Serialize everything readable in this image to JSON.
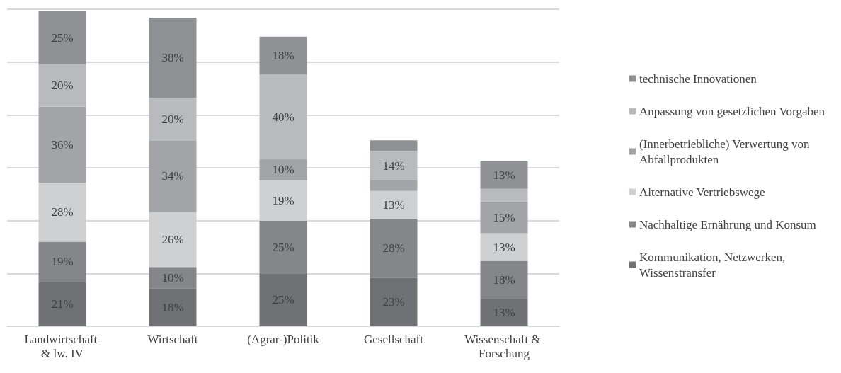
{
  "chart_data": {
    "type": "bar",
    "stacked": true,
    "grid": "y",
    "legend": "right",
    "tick_labels": "x",
    "ylim": [
      0,
      150
    ],
    "yticks": [
      0,
      25,
      50,
      75,
      100,
      125,
      150
    ],
    "categories": [
      "Landwirtschaft & lw. IV",
      "Wirtschaft",
      "(Agrar-)Politik",
      "Gesellschaft",
      "Wissenschaft & Forschung"
    ],
    "series": [
      {
        "name": "Kommunikation, Netzwerken, Wissenstransfer",
        "color": "#707175",
        "values": [
          21,
          18,
          25,
          23,
          13
        ],
        "value_labels": [
          "21%",
          "18%",
          "25%",
          "23%",
          "13%"
        ]
      },
      {
        "name": "Nachhaltige Ernährung und Konsum",
        "color": "#85868a",
        "values": [
          19,
          10,
          25,
          28,
          18
        ],
        "value_labels": [
          "19%",
          "10%",
          "25%",
          "28%",
          "18%"
        ]
      },
      {
        "name": "Alternative Vertriebswege",
        "color": "#cfd0d2",
        "values": [
          28,
          26,
          19,
          13,
          13
        ],
        "value_labels": [
          "28%",
          "26%",
          "19%",
          "13%",
          "13%"
        ]
      },
      {
        "name": "(Innerbetriebliche) Verwertung von Abfallprodukten",
        "color": "#a3a4a8",
        "values": [
          36,
          34,
          10,
          5,
          15
        ],
        "value_labels": [
          "36%",
          "34%",
          "10%",
          null,
          "15%"
        ]
      },
      {
        "name": "Anpassung von gesetzlichen Vorgaben",
        "color": "#b9babd",
        "values": [
          20,
          20,
          40,
          14,
          6
        ],
        "value_labels": [
          "20%",
          "20%",
          "40%",
          "14%",
          null
        ]
      },
      {
        "name": "technische Innovationen",
        "color": "#909195",
        "values": [
          25,
          38,
          18,
          5,
          13
        ],
        "value_labels": [
          "25%",
          "38%",
          "18%",
          null,
          "13%"
        ]
      }
    ]
  }
}
